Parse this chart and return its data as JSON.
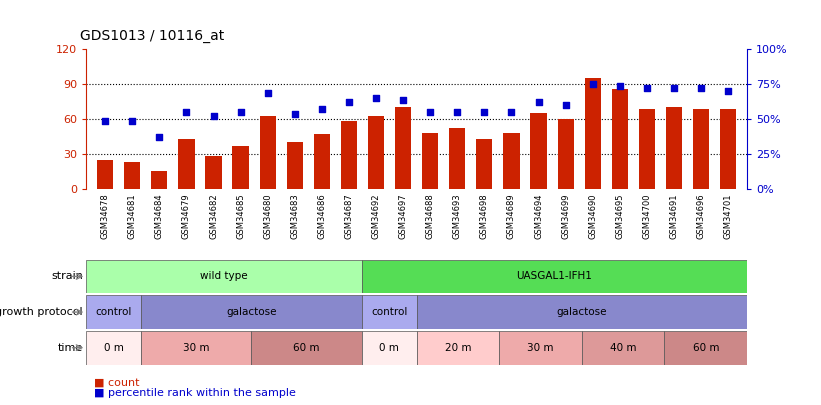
{
  "title": "GDS1013 / 10116_at",
  "samples": [
    "GSM34678",
    "GSM34681",
    "GSM34684",
    "GSM34679",
    "GSM34682",
    "GSM34685",
    "GSM34680",
    "GSM34683",
    "GSM34686",
    "GSM34687",
    "GSM34692",
    "GSM34697",
    "GSM34688",
    "GSM34693",
    "GSM34698",
    "GSM34689",
    "GSM34694",
    "GSM34699",
    "GSM34690",
    "GSM34695",
    "GSM34700",
    "GSM34691",
    "GSM34696",
    "GSM34701"
  ],
  "counts": [
    25,
    23,
    15,
    43,
    28,
    37,
    62,
    40,
    47,
    58,
    62,
    70,
    48,
    52,
    43,
    48,
    65,
    60,
    95,
    85,
    68,
    70,
    68,
    68
  ],
  "percentile": [
    48,
    48,
    37,
    55,
    52,
    55,
    68,
    53,
    57,
    62,
    65,
    63,
    55,
    55,
    55,
    55,
    62,
    60,
    75,
    73,
    72,
    72,
    72,
    70
  ],
  "ylim_left": [
    0,
    120
  ],
  "ylim_right": [
    0,
    100
  ],
  "yticks_left": [
    0,
    30,
    60,
    90,
    120
  ],
  "yticks_right": [
    0,
    25,
    50,
    75,
    100
  ],
  "ytick_labels_left": [
    "0",
    "30",
    "60",
    "90",
    "120"
  ],
  "ytick_labels_right": [
    "0%",
    "25%",
    "50%",
    "75%",
    "100%"
  ],
  "bar_color": "#cc2200",
  "dot_color": "#0000cc",
  "strain_bars": [
    {
      "label": "wild type",
      "start": 0,
      "end": 10,
      "color": "#aaffaa"
    },
    {
      "label": "UASGAL1-IFH1",
      "start": 10,
      "end": 24,
      "color": "#55dd55"
    }
  ],
  "protocol_bars": [
    {
      "label": "control",
      "start": 0,
      "end": 2,
      "color": "#aaaaee"
    },
    {
      "label": "galactose",
      "start": 2,
      "end": 10,
      "color": "#8888cc"
    },
    {
      "label": "control",
      "start": 10,
      "end": 12,
      "color": "#aaaaee"
    },
    {
      "label": "galactose",
      "start": 12,
      "end": 24,
      "color": "#8888cc"
    }
  ],
  "time_bars": [
    {
      "label": "0 m",
      "start": 0,
      "end": 2,
      "color": "#ffeeee"
    },
    {
      "label": "30 m",
      "start": 2,
      "end": 6,
      "color": "#eeaaaa"
    },
    {
      "label": "60 m",
      "start": 6,
      "end": 10,
      "color": "#cc8888"
    },
    {
      "label": "0 m",
      "start": 10,
      "end": 12,
      "color": "#ffeeee"
    },
    {
      "label": "20 m",
      "start": 12,
      "end": 15,
      "color": "#ffcccc"
    },
    {
      "label": "30 m",
      "start": 15,
      "end": 18,
      "color": "#eeaaaa"
    },
    {
      "label": "40 m",
      "start": 18,
      "end": 21,
      "color": "#dd9999"
    },
    {
      "label": "60 m",
      "start": 21,
      "end": 24,
      "color": "#cc8888"
    }
  ],
  "left_axis_color": "#cc2200",
  "right_axis_color": "#0000cc"
}
